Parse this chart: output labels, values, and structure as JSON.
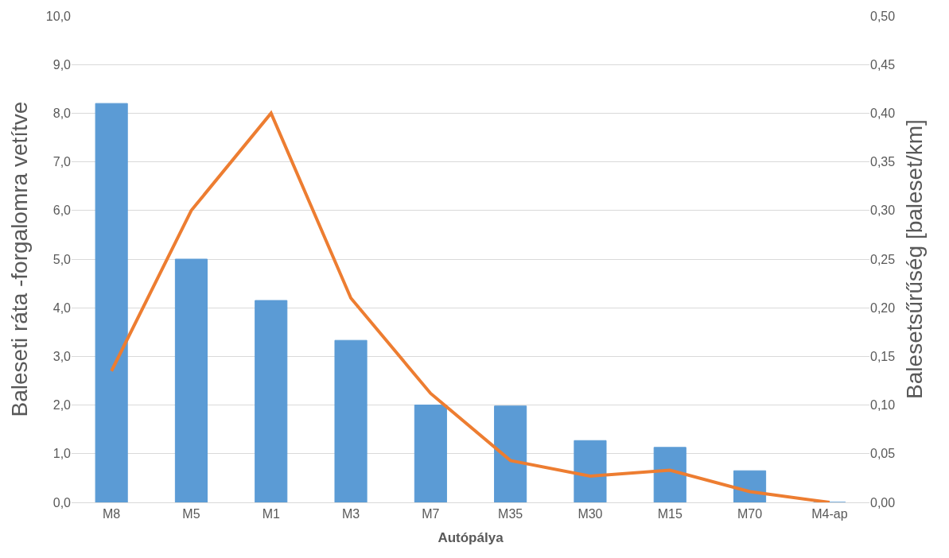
{
  "chart_data": {
    "type": "bar",
    "xlabel": "Autópálya",
    "ylabel": "Baleseti ráta -forgalomra vetítve",
    "y2label": "Balesetsűrűség [baleset/km]",
    "categories": [
      "M8",
      "M5",
      "M1",
      "M3",
      "M7",
      "M35",
      "M30",
      "M15",
      "M70",
      "M4-ap"
    ],
    "series": [
      {
        "color": "#5b9bd5",
        "values": [
          8.2,
          5.0,
          4.15,
          3.33,
          2.0,
          1.98,
          1.27,
          1.13,
          0.65,
          0
        ]
      },
      {
        "type": "line",
        "axis": "y2",
        "color": "#ed7d31",
        "values": [
          0.135,
          0.3,
          0.4,
          0.21,
          0.112,
          0.043,
          0.027,
          0.033,
          0.011,
          0
        ]
      }
    ],
    "ylim": [
      0,
      10
    ],
    "yticks": [
      {
        "value": 0,
        "label": "0,0"
      },
      {
        "value": 1,
        "label": "1,0"
      },
      {
        "value": 2,
        "label": "2,0"
      },
      {
        "value": 3,
        "label": "3,0"
      },
      {
        "value": 4,
        "label": "4,0"
      },
      {
        "value": 5,
        "label": "5,0"
      },
      {
        "value": 6,
        "label": "6,0"
      },
      {
        "value": 7,
        "label": "7,0"
      },
      {
        "value": 8,
        "label": "8,0"
      },
      {
        "value": 9,
        "label": "9,0"
      },
      {
        "value": 10,
        "label": "10,0"
      }
    ],
    "y2lim": [
      0,
      0.5
    ],
    "y2ticks": [
      {
        "value": 0,
        "label": "0,00"
      },
      {
        "value": 0.05,
        "label": "0,05"
      },
      {
        "value": 0.1,
        "label": "0,10"
      },
      {
        "value": 0.15,
        "label": "0,15"
      },
      {
        "value": 0.2,
        "label": "0,20"
      },
      {
        "value": 0.25,
        "label": "0,25"
      },
      {
        "value": 0.3,
        "label": "0,30"
      },
      {
        "value": 0.35,
        "label": "0,35"
      },
      {
        "value": 0.4,
        "label": "0,40"
      },
      {
        "value": 0.45,
        "label": "0,45"
      },
      {
        "value": 0.5,
        "label": "0,50"
      }
    ],
    "grid": "y",
    "marker": "none",
    "line_style": "solid"
  }
}
